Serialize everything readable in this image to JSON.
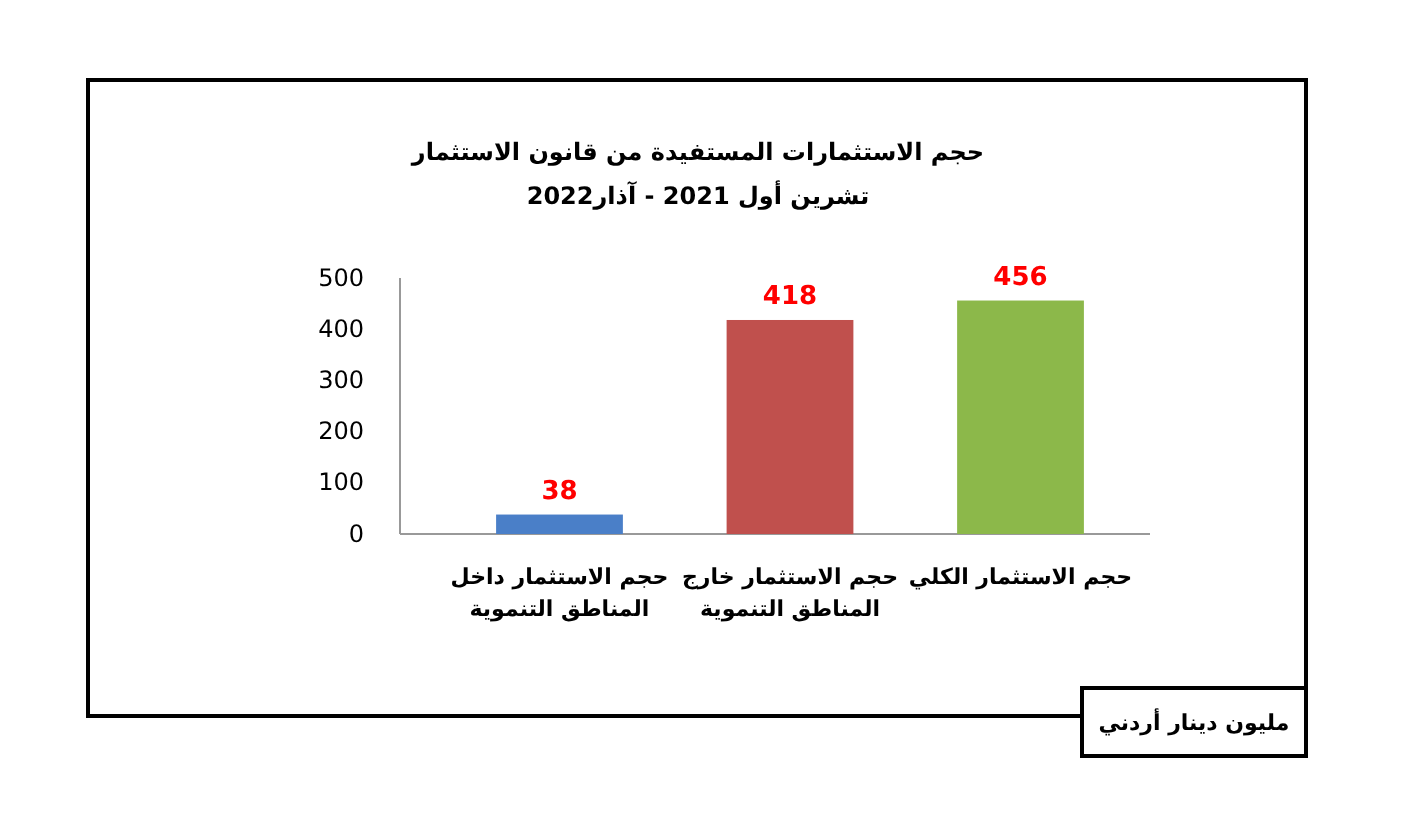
{
  "chart_data": {
    "type": "bar",
    "title": "حجم الاستثمارات المستفيدة من قانون الاستثمار",
    "subtitle": "تشرين أول 2021 - آذار2022",
    "categories": [
      "حجم الاستثمار داخل المناطق التنموية",
      "حجم الاستثمار خارج المناطق التنموية",
      "حجم الاستثمار الكلي"
    ],
    "values": [
      38,
      418,
      456
    ],
    "colors": [
      "#4a7fc8",
      "#c0504d",
      "#8cb84a"
    ],
    "ylim": [
      0,
      500
    ],
    "yticks": [
      0,
      100,
      200,
      300,
      400,
      500
    ],
    "data_labels": true,
    "annotations": [
      "مليون دينار أردني"
    ]
  }
}
